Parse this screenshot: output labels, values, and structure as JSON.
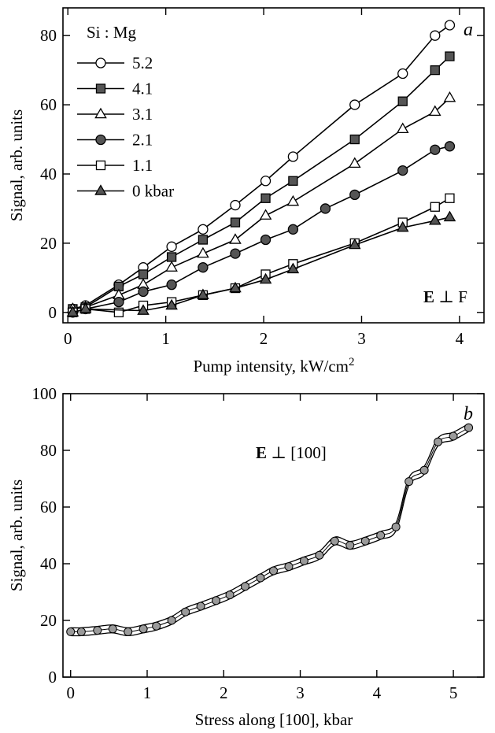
{
  "chart_data": [
    {
      "type": "line",
      "panel_label": "a",
      "xlabel": "Pump intensity, kW/cm",
      "xlabel_sup": "2",
      "ylabel": "Signal, arb. units",
      "xlim": [
        -0.05,
        4.25
      ],
      "ylim": [
        -3,
        88
      ],
      "xticks": [
        0,
        1,
        2,
        3,
        4
      ],
      "yticks": [
        0,
        20,
        40,
        60,
        80
      ],
      "legend_title": "Si : Mg",
      "legend_position": "top-left",
      "annotation": {
        "bold": "E",
        "rest": " ⊥ F"
      },
      "series": [
        {
          "name": "5.2",
          "marker": "circle-open",
          "x": [
            0.05,
            0.18,
            0.52,
            0.77,
            1.06,
            1.38,
            1.71,
            2.02,
            2.3,
            2.93,
            3.42,
            3.75,
            3.9
          ],
          "y": [
            1,
            2,
            8,
            13,
            19,
            24,
            31,
            38,
            45,
            60,
            69,
            80,
            83
          ]
        },
        {
          "name": "4.1",
          "marker": "square-filled",
          "x": [
            0.05,
            0.18,
            0.52,
            0.77,
            1.06,
            1.38,
            1.71,
            2.02,
            2.3,
            2.93,
            3.42,
            3.75,
            3.9
          ],
          "y": [
            1,
            1.5,
            7.5,
            11,
            16,
            21,
            26,
            33,
            38,
            50,
            61,
            70,
            74
          ]
        },
        {
          "name": "3.1",
          "marker": "triangle-open",
          "x": [
            0.05,
            0.18,
            0.52,
            0.77,
            1.06,
            1.38,
            1.71,
            2.02,
            2.3,
            2.93,
            3.42,
            3.75,
            3.9
          ],
          "y": [
            1,
            1.5,
            5,
            8,
            13,
            17,
            21,
            28,
            32,
            43,
            53,
            58,
            62
          ]
        },
        {
          "name": "2.1",
          "marker": "circle-filled",
          "x": [
            0.05,
            0.18,
            0.52,
            0.77,
            1.06,
            1.38,
            1.71,
            2.02,
            2.3,
            2.63,
            2.93,
            3.42,
            3.75,
            3.9
          ],
          "y": [
            0,
            1,
            3,
            6,
            8,
            13,
            17,
            21,
            24,
            30,
            34,
            41,
            47,
            48
          ]
        },
        {
          "name": "1.1",
          "marker": "square-open",
          "x": [
            0.05,
            0.18,
            0.52,
            0.77,
            1.06,
            1.38,
            1.71,
            2.02,
            2.3,
            2.93,
            3.42,
            3.75,
            3.9
          ],
          "y": [
            0,
            1,
            0,
            2,
            3,
            5,
            7,
            11,
            14,
            20,
            26,
            30.5,
            33
          ]
        },
        {
          "name": "0 kbar",
          "marker": "triangle-filled",
          "x": [
            0.05,
            0.18,
            0.77,
            1.06,
            1.38,
            1.71,
            2.02,
            2.3,
            2.93,
            3.42,
            3.75,
            3.9
          ],
          "y": [
            0,
            1,
            0.5,
            2,
            5,
            7,
            9.5,
            12.5,
            19.5,
            24.5,
            26.5,
            27.5
          ]
        }
      ]
    },
    {
      "type": "line",
      "panel_label": "b",
      "xlabel": "Stress along [100], kbar",
      "ylabel": "Signal, arb. units",
      "xlim": [
        -0.1,
        5.4
      ],
      "ylim": [
        0,
        100
      ],
      "xticks": [
        0,
        1,
        2,
        3,
        4,
        5
      ],
      "yticks": [
        0,
        20,
        40,
        60,
        80,
        100
      ],
      "annotation": {
        "bold": "E",
        "rest": " ⊥ [100]"
      },
      "series": [
        {
          "marker": "circle-gray",
          "x": [
            0.0,
            0.14,
            0.35,
            0.55,
            0.75,
            0.95,
            1.12,
            1.32,
            1.5,
            1.7,
            1.9,
            2.08,
            2.28,
            2.48,
            2.65,
            2.85,
            3.05,
            3.25,
            3.45,
            3.65,
            3.85,
            4.05,
            4.25,
            4.42,
            4.62,
            4.8,
            5.0,
            5.2
          ],
          "y": [
            16,
            16,
            16.5,
            17,
            16,
            17,
            18,
            20,
            23,
            25,
            27,
            29,
            32,
            35,
            37.5,
            39,
            41,
            43,
            48,
            46.5,
            48,
            50,
            53,
            69,
            73,
            83,
            85,
            88
          ]
        }
      ]
    }
  ]
}
